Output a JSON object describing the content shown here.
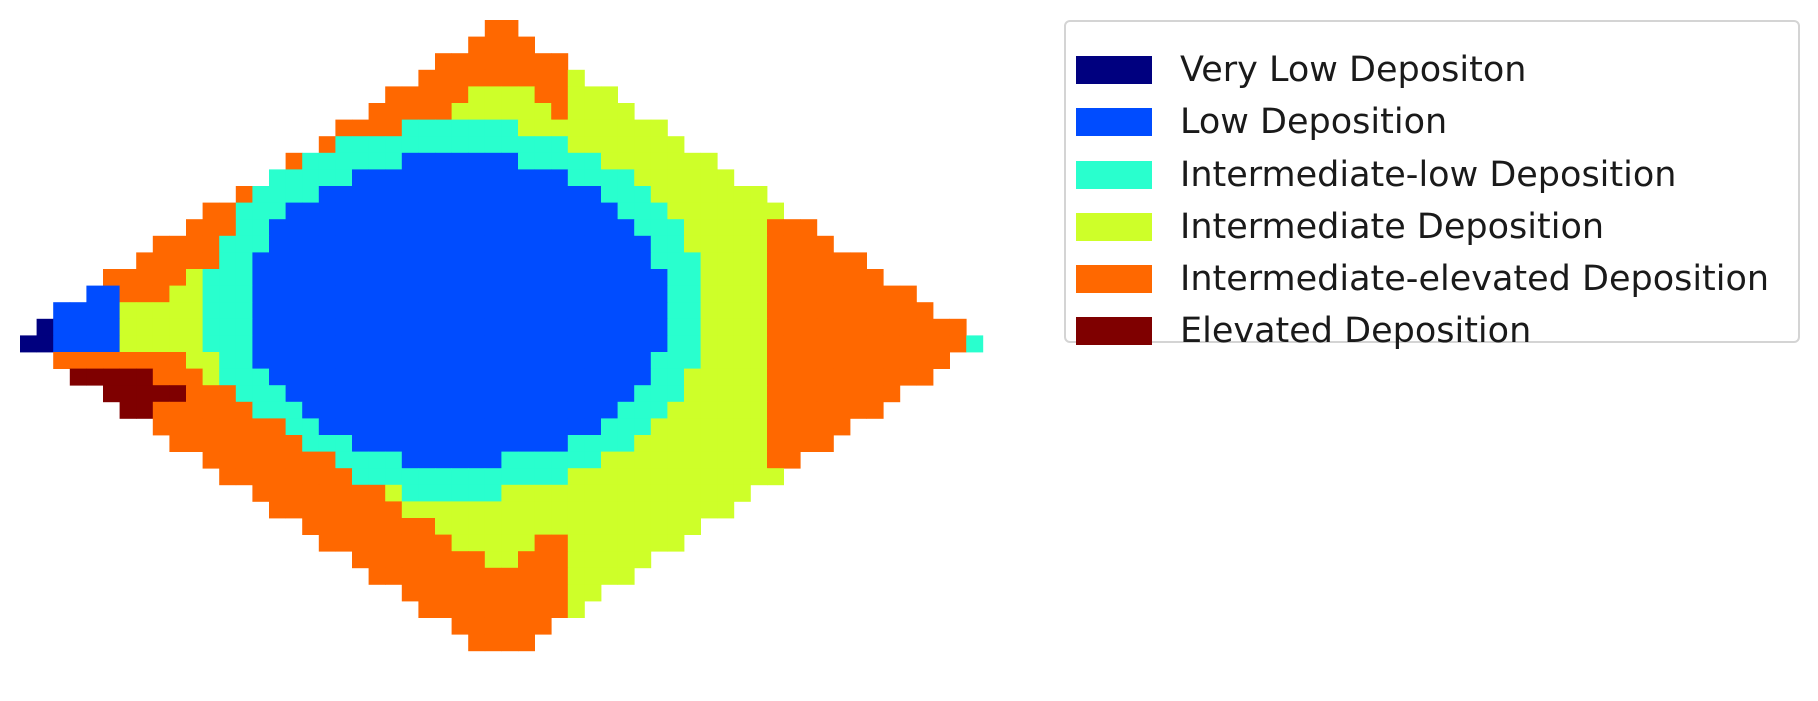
{
  "legend": {
    "items": [
      {
        "label": "Very Low Depositon",
        "color": "#00007f"
      },
      {
        "label": "Low Deposition",
        "color": "#004cff"
      },
      {
        "label": "Intermediate-low Deposition",
        "color": "#29ffce"
      },
      {
        "label": "Intermediate Deposition",
        "color": "#ceff29"
      },
      {
        "label": "Intermediate-elevated Deposition",
        "color": "#ff6800"
      },
      {
        "label": "Elevated Deposition",
        "color": "#7f0000"
      }
    ]
  },
  "map": {
    "levels": [
      "very_low",
      "low",
      "intermediate_low",
      "intermediate",
      "intermediate_elevated",
      "elevated"
    ],
    "color_index": {
      "1": "very_low",
      "2": "low",
      "3": "intermediate_low",
      "4": "intermediate",
      "5": "intermediate_elevated",
      "6": "elevated"
    }
  }
}
